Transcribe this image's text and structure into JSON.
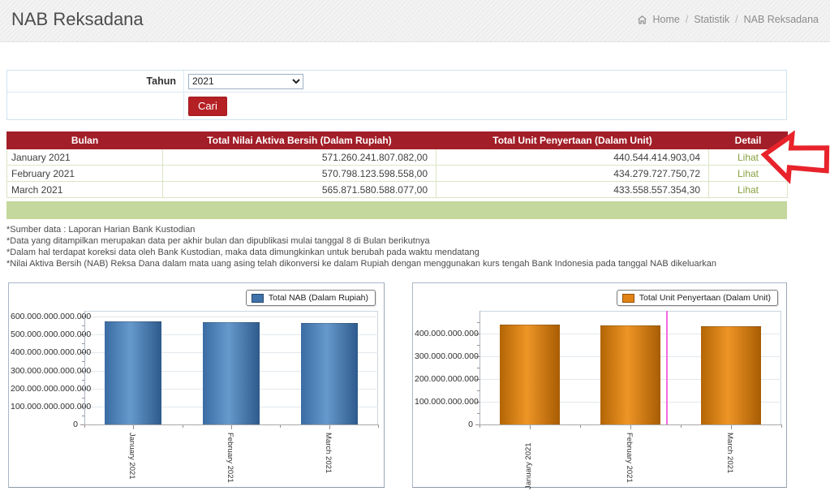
{
  "page": {
    "title": "NAB Reksadana"
  },
  "breadcrumb": {
    "separator": "/",
    "items": [
      {
        "label": "Home"
      },
      {
        "label": "Statistik"
      },
      {
        "label": "NAB Reksadana"
      }
    ]
  },
  "filter": {
    "year_label": "Tahun",
    "year_value": "2021",
    "search_button": "Cari"
  },
  "table": {
    "headers": [
      "Bulan",
      "Total Nilai Aktiva Bersih (Dalam Rupiah)",
      "Total Unit Penyertaan (Dalam Unit)",
      "Detail"
    ],
    "rows": [
      {
        "month": "January 2021",
        "nab": "571.260.241.807.082,00",
        "unit": "440.544.414.903,04",
        "detail": "Lihat"
      },
      {
        "month": "February 2021",
        "nab": "570.798.123.598.558,00",
        "unit": "434.279.727.750,72",
        "detail": "Lihat"
      },
      {
        "month": "March 2021",
        "nab": "565.871.580.588.077,00",
        "unit": "433.558.557.354,30",
        "detail": "Lihat"
      }
    ]
  },
  "annotation": {
    "shape": "arrow-pointing-left-at-first-lihat",
    "color": "#e8232b"
  },
  "footnotes": [
    "*Sumber data : Laporan Harian Bank Kustodian",
    "*Data yang ditampilkan merupakan data per akhir bulan dan dipublikasi mulai tanggal 8 di Bulan berikutnya",
    "*Dalam hal terdapat koreksi data oleh Bank Kustodian, maka data dimungkinkan untuk berubah pada waktu mendatang",
    "*Nilai Aktiva Bersih (NAB) Reksa Dana dalam mata uang asing telah dikonversi ke dalam Rupiah dengan menggunakan kurs tengah Bank Indonesia pada tanggal NAB dikeluarkan"
  ],
  "chart_data": [
    {
      "type": "bar",
      "legend": "Total NAB (Dalam Rupiah)",
      "legend_position": "top-right",
      "categories": [
        "January 2021",
        "February 2021",
        "March 2021"
      ],
      "values": [
        571260241807082,
        570798123598558,
        565871580588077
      ],
      "bar_color": "#3f72a8",
      "bar_gradient": [
        "#3a6ca3",
        "#6699cc",
        "#2e5a8c"
      ],
      "ylim": [
        0,
        632000000000000
      ],
      "ytick_step": 100000000000000,
      "ytick_labels": [
        "0",
        "100.000.000.000.000",
        "200.000.000.000.000",
        "300.000.000.000.000",
        "400.000.000.000.000",
        "500.000.000.000.000",
        "600.000.000.000.000"
      ],
      "grid": true,
      "flipped_label_indexes": []
    },
    {
      "type": "bar",
      "legend": "Total Unit Penyertaan (Dalam Unit)",
      "legend_position": "top-right",
      "categories": [
        "January 2021",
        "February 2021",
        "March 2021"
      ],
      "values": [
        440544414903,
        434279727750,
        433558557354
      ],
      "bar_color": "#e08214",
      "bar_gradient": [
        "#b36505",
        "#ee9526",
        "#a85c03"
      ],
      "ylim": [
        0,
        500000000000
      ],
      "ytick_step": 100000000000,
      "ytick_labels": [
        "0",
        "100.000.000.000",
        "200.000.000.000",
        "300.000.000.000",
        "400.000.000.000"
      ],
      "grid": true,
      "flipped_label_indexes": [
        0
      ],
      "cursor_line": {
        "color": "#f16be0",
        "x_fraction": 0.617
      }
    }
  ]
}
